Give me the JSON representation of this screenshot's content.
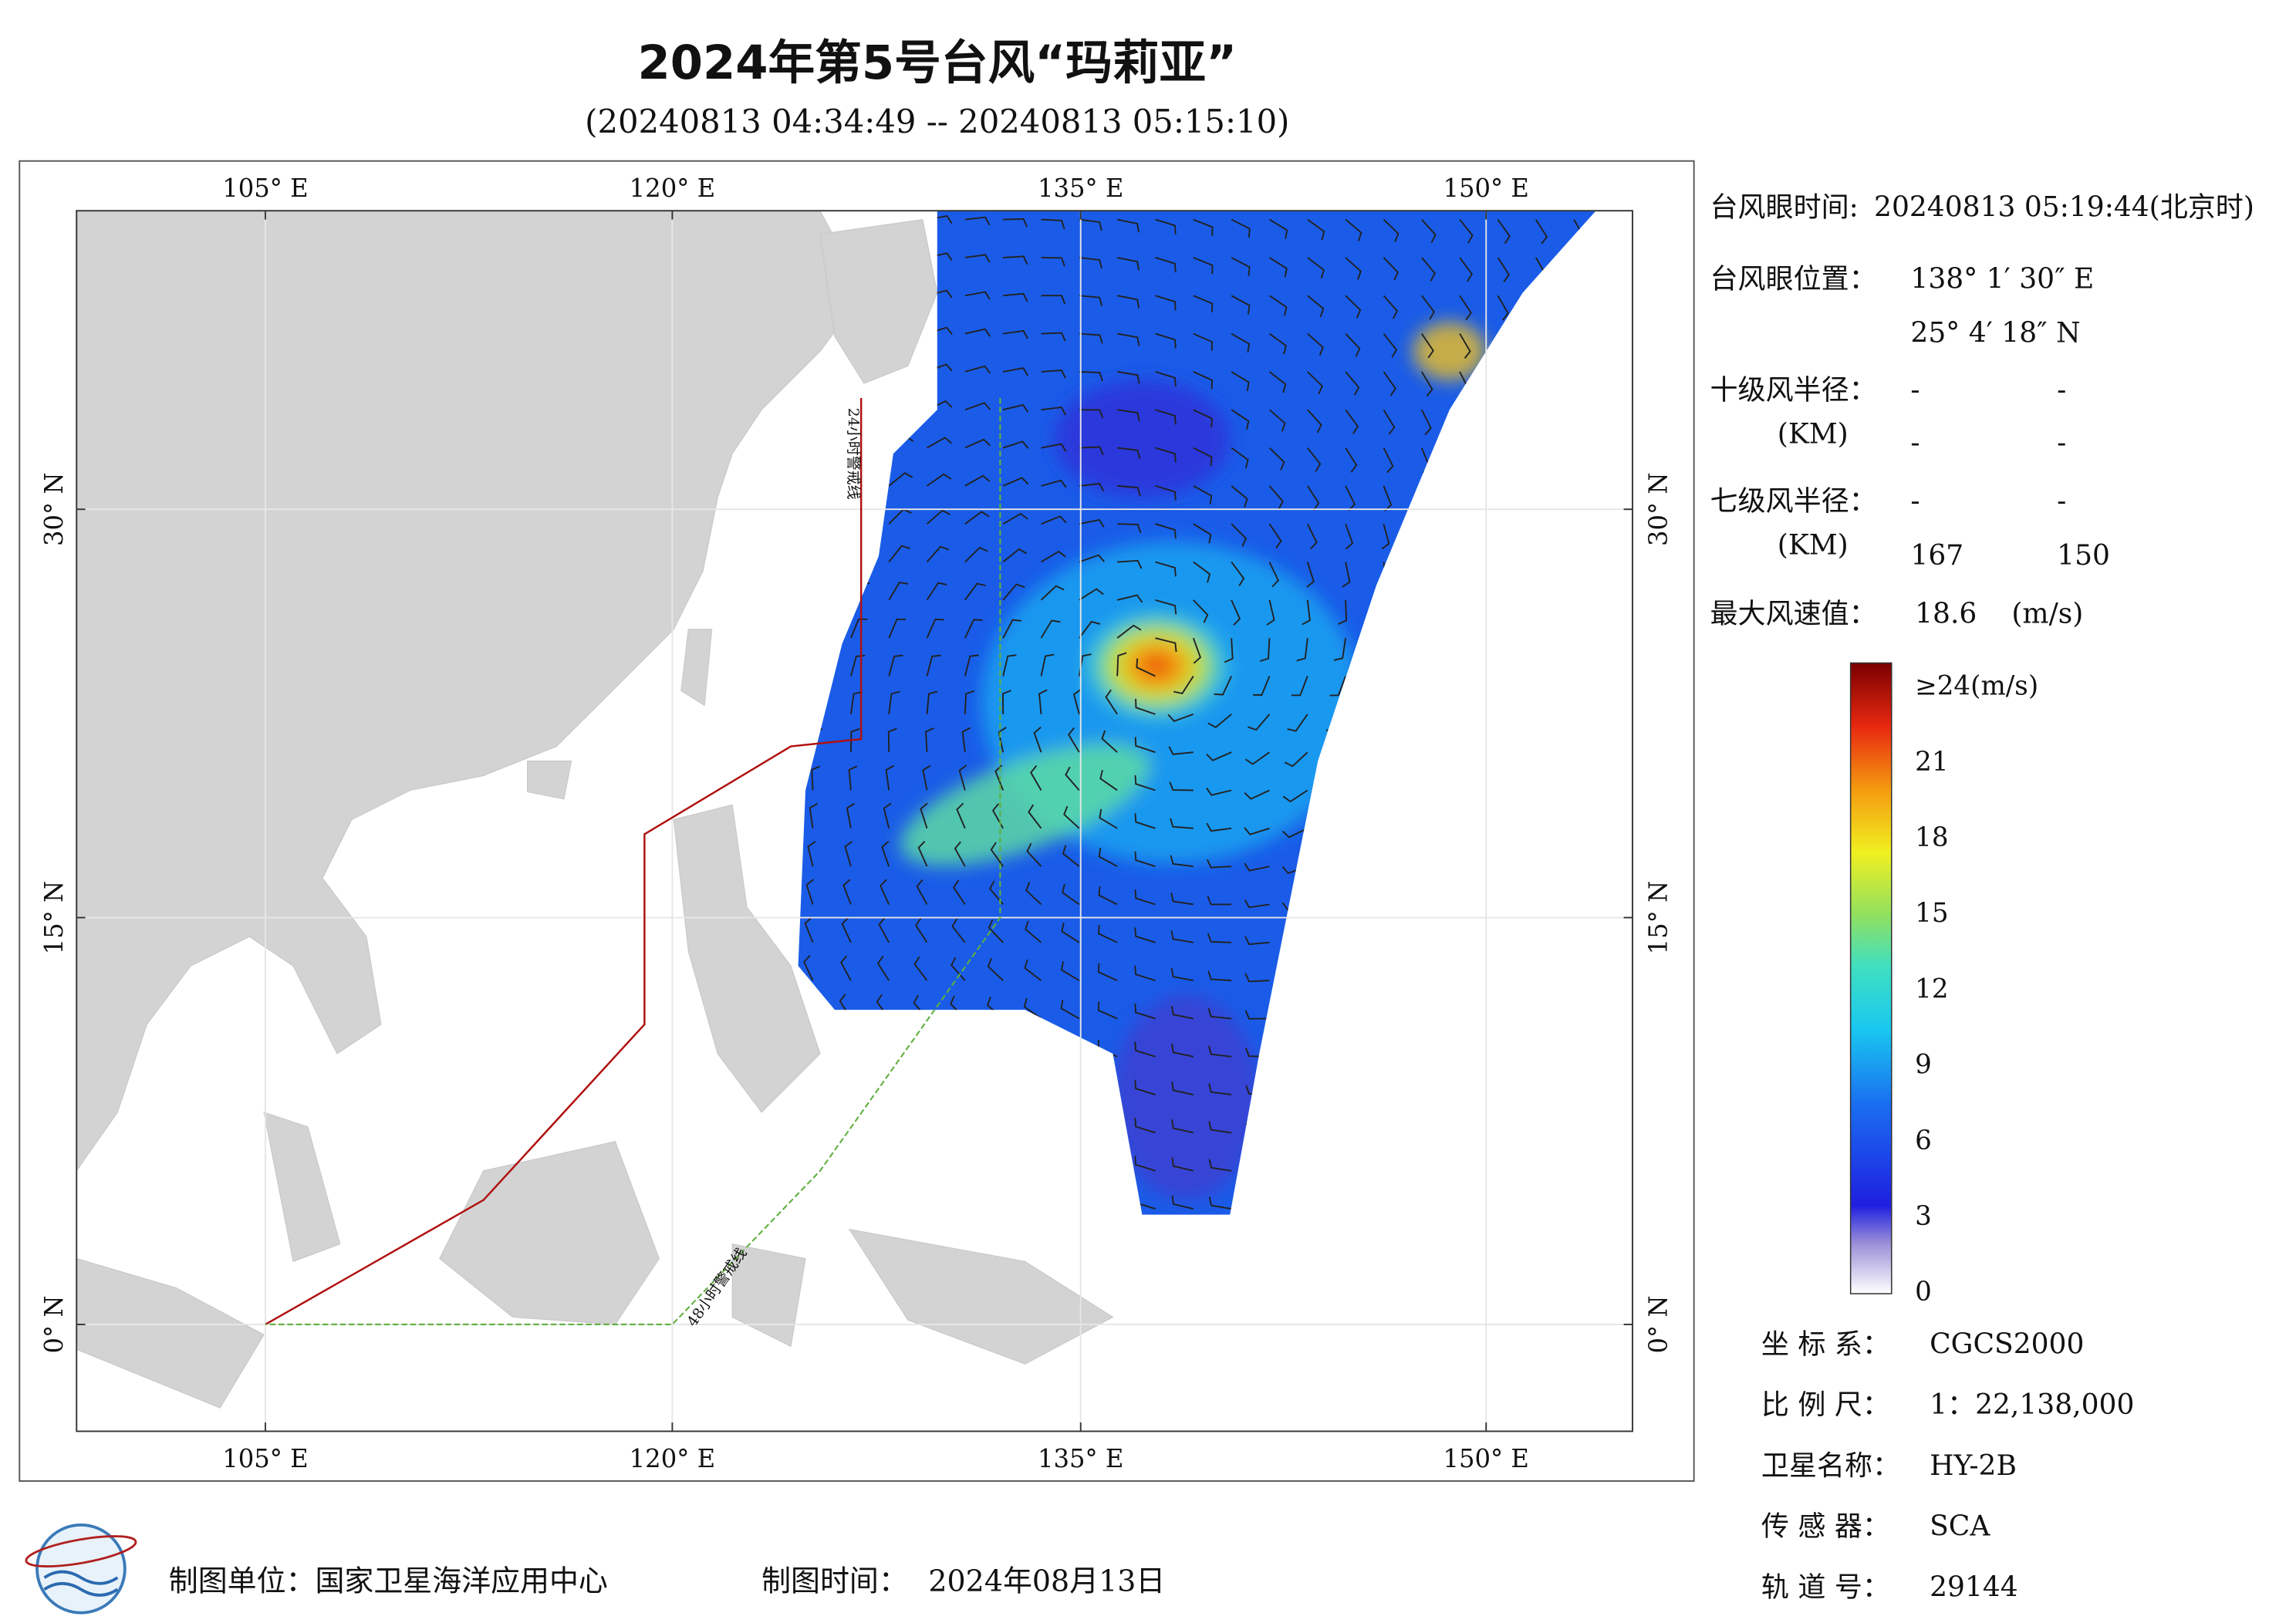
{
  "header": {
    "title": "2024年第5号台风“玛莉亚”",
    "subtitle": "(20240813 04:34:49 -- 20240813 05:15:10)"
  },
  "map": {
    "lon_labels": [
      "105° E",
      "120° E",
      "135° E",
      "150° E"
    ],
    "lat_labels": [
      "30° N",
      "15° N",
      "0° N"
    ],
    "warning_24h": "24小时警戒线",
    "warning_48h": "48小时警戒线"
  },
  "info": {
    "eye_time_label": "台风眼时间:",
    "eye_time": "20240813 05:19:44(北京时)",
    "eye_pos_label": "台风眼位置：",
    "eye_lon": "138° 1′ 30″ E",
    "eye_lat": "25° 4′ 18″ N",
    "r10_label": "十级风半径：",
    "r10_unit": "(KM)",
    "r10_values": [
      "-",
      "-",
      "-",
      "-"
    ],
    "r7_label": "七级风半径：",
    "r7_unit": "(KM)",
    "r7_values": [
      "-",
      "-",
      "167",
      "150"
    ],
    "max_wind_label": "最大风速值：",
    "max_wind": "18.6",
    "max_wind_unit": "(m/s)"
  },
  "colorbar": {
    "labels": [
      "≥24(m/s)",
      "21",
      "18",
      "15",
      "12",
      "9",
      "6",
      "3",
      "0"
    ]
  },
  "meta": [
    {
      "label": "坐 标 系：",
      "value": "CGCS2000"
    },
    {
      "label": "比 例 尺：",
      "value": "1：22,138,000"
    },
    {
      "label": "卫星名称：",
      "value": "HY-2B"
    },
    {
      "label": "传 感 器：",
      "value": "SCA"
    },
    {
      "label": "轨 道 号：",
      "value": "29144"
    }
  ],
  "footer": {
    "unit": "制图单位：国家卫星海洋应用中心",
    "time_label": "制图时间：",
    "time": "2024年08月13日"
  }
}
